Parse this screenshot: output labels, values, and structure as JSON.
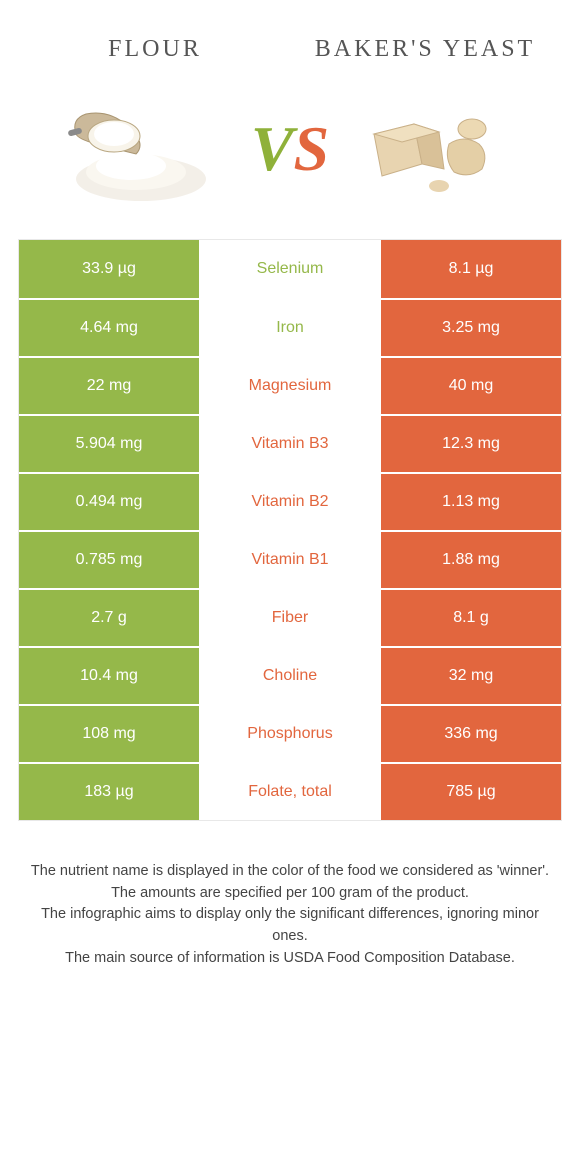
{
  "colors": {
    "left": "#95b84a",
    "right": "#e2663e",
    "mid_bg": "#ffffff"
  },
  "header": {
    "left_title": "Flour",
    "right_title": "Baker's Yeast"
  },
  "vs": {
    "v": "V",
    "s": "S"
  },
  "rows": [
    {
      "left": "33.9 µg",
      "label": "Selenium",
      "right": "8.1 µg",
      "winner": "left"
    },
    {
      "left": "4.64 mg",
      "label": "Iron",
      "right": "3.25 mg",
      "winner": "left"
    },
    {
      "left": "22 mg",
      "label": "Magnesium",
      "right": "40 mg",
      "winner": "right"
    },
    {
      "left": "5.904 mg",
      "label": "Vitamin B3",
      "right": "12.3 mg",
      "winner": "right"
    },
    {
      "left": "0.494 mg",
      "label": "Vitamin B2",
      "right": "1.13 mg",
      "winner": "right"
    },
    {
      "left": "0.785 mg",
      "label": "Vitamin B1",
      "right": "1.88 mg",
      "winner": "right"
    },
    {
      "left": "2.7 g",
      "label": "Fiber",
      "right": "8.1 g",
      "winner": "right"
    },
    {
      "left": "10.4 mg",
      "label": "Choline",
      "right": "32 mg",
      "winner": "right"
    },
    {
      "left": "108 mg",
      "label": "Phosphorus",
      "right": "336 mg",
      "winner": "right"
    },
    {
      "left": "183 µg",
      "label": "Folate, total",
      "right": "785 µg",
      "winner": "right"
    }
  ],
  "footer": {
    "line1": "The nutrient name is displayed in the color of the food we considered as 'winner'.",
    "line2": "The amounts are specified per 100 gram of the product.",
    "line3": "The infographic aims to display only the significant differences, ignoring minor ones.",
    "line4": "The main source of information is USDA Food Composition Database."
  }
}
